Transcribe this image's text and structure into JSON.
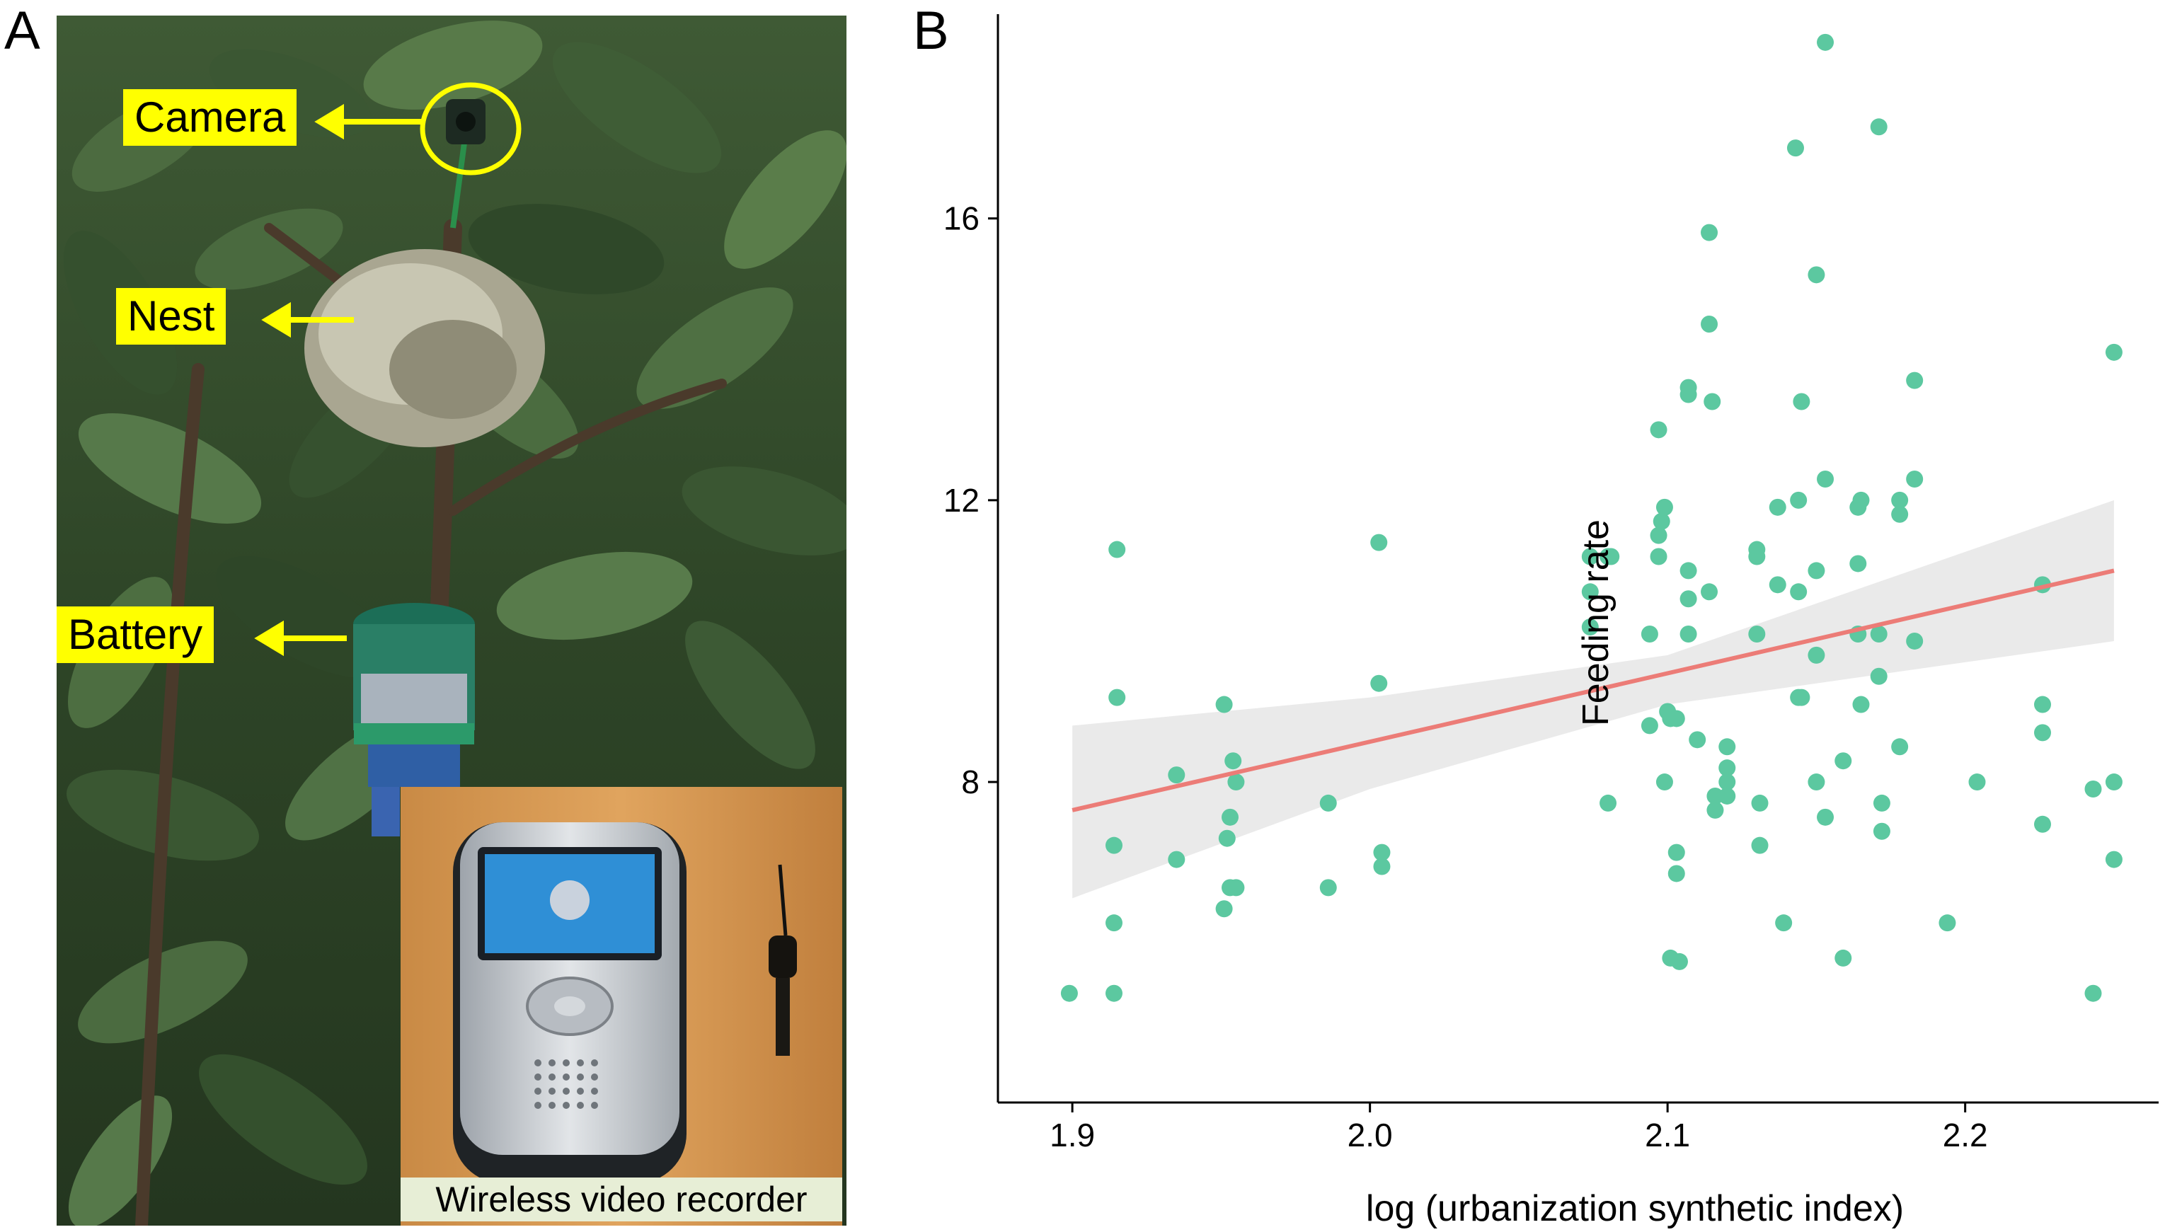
{
  "panel_a": {
    "letter": "A",
    "callouts": {
      "camera": "Camera",
      "nest": "Nest",
      "battery": "Battery"
    },
    "inset_caption": "Wireless video recorder"
  },
  "panel_b": {
    "letter": "B"
  },
  "colors": {
    "points": "#5cc8a0",
    "fit_line": "#ec7c77",
    "confidence_band": "#e6e6e6",
    "callout_fill": "#ffff00",
    "callout_arrow": "#ffff00"
  },
  "chart_data": {
    "type": "scatter",
    "title": "",
    "xlabel": "log (urbanization synthetic index)",
    "ylabel": "Feeding rate",
    "xlim": [
      1.875,
      2.265
    ],
    "ylim": [
      3.45,
      18.9
    ],
    "x_ticks": [
      1.9,
      2.0,
      2.1,
      2.2
    ],
    "x_tick_labels": [
      "1.9",
      "2.0",
      "2.1",
      "2.2"
    ],
    "y_ticks": [
      8,
      12,
      16
    ],
    "y_tick_labels": [
      "8",
      "12",
      "16"
    ],
    "grid": false,
    "legend": "none",
    "points": [
      [
        1.899,
        5.0
      ],
      [
        1.914,
        5.0
      ],
      [
        1.914,
        6.0
      ],
      [
        1.914,
        7.1
      ],
      [
        1.915,
        9.2
      ],
      [
        1.915,
        11.3
      ],
      [
        1.935,
        8.1
      ],
      [
        1.935,
        6.9
      ],
      [
        1.951,
        9.1
      ],
      [
        1.952,
        7.2
      ],
      [
        1.953,
        7.5
      ],
      [
        1.954,
        8.3
      ],
      [
        1.955,
        8.0
      ],
      [
        1.953,
        6.5
      ],
      [
        1.955,
        6.5
      ],
      [
        1.951,
        6.2
      ],
      [
        1.986,
        7.7
      ],
      [
        1.986,
        6.5
      ],
      [
        2.003,
        11.4
      ],
      [
        2.003,
        9.4
      ],
      [
        2.004,
        7.0
      ],
      [
        2.004,
        6.8
      ],
      [
        2.074,
        11.2
      ],
      [
        2.074,
        10.7
      ],
      [
        2.074,
        10.2
      ],
      [
        2.08,
        11.2
      ],
      [
        2.081,
        11.2
      ],
      [
        2.08,
        7.7
      ],
      [
        2.094,
        10.1
      ],
      [
        2.094,
        8.8
      ],
      [
        2.097,
        13.0
      ],
      [
        2.097,
        11.5
      ],
      [
        2.097,
        11.2
      ],
      [
        2.098,
        11.7
      ],
      [
        2.099,
        11.9
      ],
      [
        2.099,
        8.0
      ],
      [
        2.1,
        9.0
      ],
      [
        2.101,
        8.9
      ],
      [
        2.103,
        8.9
      ],
      [
        2.101,
        5.5
      ],
      [
        2.104,
        5.45
      ],
      [
        2.103,
        7.0
      ],
      [
        2.103,
        6.7
      ],
      [
        2.107,
        13.6
      ],
      [
        2.107,
        13.5
      ],
      [
        2.107,
        11.0
      ],
      [
        2.107,
        10.6
      ],
      [
        2.107,
        10.1
      ],
      [
        2.11,
        8.6
      ],
      [
        2.114,
        15.8
      ],
      [
        2.114,
        14.5
      ],
      [
        2.115,
        13.4
      ],
      [
        2.114,
        10.7
      ],
      [
        2.116,
        7.8
      ],
      [
        2.116,
        7.6
      ],
      [
        2.12,
        8.5
      ],
      [
        2.12,
        8.2
      ],
      [
        2.12,
        8.0
      ],
      [
        2.12,
        7.8
      ],
      [
        2.13,
        11.3
      ],
      [
        2.13,
        11.2
      ],
      [
        2.13,
        10.1
      ],
      [
        2.131,
        7.7
      ],
      [
        2.131,
        7.1
      ],
      [
        2.137,
        11.9
      ],
      [
        2.137,
        10.8
      ],
      [
        2.139,
        6.0
      ],
      [
        2.143,
        17.0
      ],
      [
        2.144,
        12.0
      ],
      [
        2.144,
        10.7
      ],
      [
        2.144,
        9.2
      ],
      [
        2.145,
        13.4
      ],
      [
        2.145,
        9.2
      ],
      [
        2.15,
        15.2
      ],
      [
        2.15,
        11.0
      ],
      [
        2.15,
        9.8
      ],
      [
        2.15,
        8.0
      ],
      [
        2.153,
        18.5
      ],
      [
        2.153,
        12.3
      ],
      [
        2.153,
        7.5
      ],
      [
        2.159,
        8.3
      ],
      [
        2.159,
        5.5
      ],
      [
        2.164,
        11.9
      ],
      [
        2.164,
        11.1
      ],
      [
        2.164,
        10.1
      ],
      [
        2.165,
        12.0
      ],
      [
        2.165,
        9.1
      ],
      [
        2.171,
        17.3
      ],
      [
        2.171,
        10.1
      ],
      [
        2.171,
        9.5
      ],
      [
        2.172,
        7.7
      ],
      [
        2.172,
        7.3
      ],
      [
        2.178,
        12.0
      ],
      [
        2.178,
        11.8
      ],
      [
        2.178,
        8.5
      ],
      [
        2.183,
        13.7
      ],
      [
        2.183,
        12.3
      ],
      [
        2.183,
        10.0
      ],
      [
        2.194,
        6.0
      ],
      [
        2.204,
        8.0
      ],
      [
        2.226,
        10.8
      ],
      [
        2.226,
        9.1
      ],
      [
        2.226,
        8.7
      ],
      [
        2.226,
        7.4
      ],
      [
        2.243,
        5.0
      ],
      [
        2.243,
        7.9
      ],
      [
        2.25,
        14.1
      ],
      [
        2.25,
        8.0
      ],
      [
        2.25,
        6.9
      ]
    ],
    "fit_line": {
      "x": [
        1.9,
        2.25
      ],
      "y": [
        7.6,
        11.0
      ]
    },
    "confidence_band": {
      "x": [
        1.9,
        2.0,
        2.1,
        2.25
      ],
      "upper": [
        8.8,
        9.2,
        9.8,
        12.0
      ],
      "lower": [
        6.35,
        7.9,
        9.1,
        10.0
      ]
    }
  }
}
